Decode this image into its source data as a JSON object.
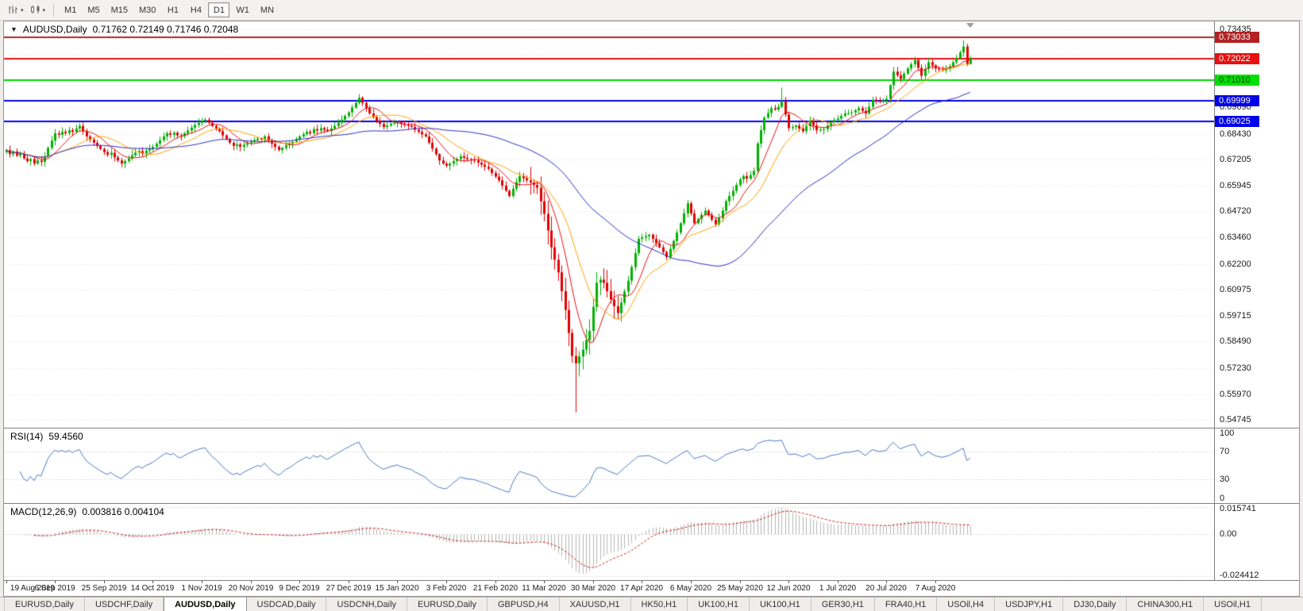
{
  "toolbar": {
    "timeframes": {
      "items": [
        "M1",
        "M5",
        "M15",
        "M30",
        "H1",
        "H4",
        "D1",
        "W1",
        "MN"
      ],
      "active": "D1"
    },
    "icons": [
      "bar-chart-icon",
      "candlestick-chart-icon"
    ]
  },
  "chart": {
    "title": "AUDUSD,Daily",
    "ohlc": "0.71762 0.72149 0.71746 0.72048"
  },
  "chart_data": {
    "type": "candlestick",
    "symbol": "AUDUSD",
    "timeframe": "Daily",
    "open": "0.71762",
    "high": "0.72149",
    "low": "0.71746",
    "close": "0.72048",
    "y_range": [
      0.5437,
      0.738
    ],
    "bars_total": 277,
    "colors": {
      "bull": "#00B000",
      "bear": "#E00000",
      "rsi_line": "#4878C8",
      "macd_hist": "#B4B4B4",
      "macd_signal": "#CC2222",
      "grid": "#E0E0E0"
    },
    "closes": [
      0.6765,
      0.6745,
      0.6758,
      0.6738,
      0.6748,
      0.6725,
      0.6712,
      0.6722,
      0.67,
      0.6715,
      0.6708,
      0.6735,
      0.6775,
      0.681,
      0.6845,
      0.6838,
      0.6852,
      0.6845,
      0.686,
      0.6852,
      0.6868,
      0.688,
      0.6855,
      0.683,
      0.6815,
      0.68,
      0.6785,
      0.677,
      0.6755,
      0.6742,
      0.6752,
      0.673,
      0.6715,
      0.67,
      0.6712,
      0.6725,
      0.674,
      0.6752,
      0.676,
      0.6748,
      0.6762,
      0.677,
      0.678,
      0.6795,
      0.6812,
      0.683,
      0.6845,
      0.6838,
      0.6848,
      0.6835,
      0.683,
      0.6845,
      0.6858,
      0.6872,
      0.6885,
      0.6895,
      0.6905,
      0.691,
      0.6895,
      0.688,
      0.6868,
      0.6855,
      0.6835,
      0.6818,
      0.68,
      0.6785,
      0.6792,
      0.678,
      0.679,
      0.6798,
      0.6805,
      0.6812,
      0.682,
      0.6815,
      0.683,
      0.6812,
      0.6795,
      0.678,
      0.6765,
      0.6775,
      0.6788,
      0.6795,
      0.6805,
      0.6818,
      0.683,
      0.684,
      0.6852,
      0.6845,
      0.6865,
      0.6858,
      0.687,
      0.6862,
      0.6855,
      0.6868,
      0.688,
      0.6895,
      0.691,
      0.6928,
      0.6945,
      0.6968,
      0.699,
      0.7015,
      0.699,
      0.6965,
      0.694,
      0.6922,
      0.6905,
      0.689,
      0.6875,
      0.6882,
      0.689,
      0.6895,
      0.69,
      0.6892,
      0.6885,
      0.688,
      0.6875,
      0.6862,
      0.6852,
      0.684,
      0.683,
      0.68,
      0.6772,
      0.6745,
      0.6715,
      0.67,
      0.669,
      0.67,
      0.6712,
      0.6722,
      0.6735,
      0.6728,
      0.6722,
      0.6718,
      0.6715,
      0.6705,
      0.6695,
      0.6685,
      0.6675,
      0.6655,
      0.6638,
      0.662,
      0.6595,
      0.657,
      0.6545,
      0.658,
      0.6612,
      0.664,
      0.663,
      0.662,
      0.661,
      0.6598,
      0.6585,
      0.652,
      0.646,
      0.638,
      0.63,
      0.624,
      0.618,
      0.609,
      0.6,
      0.589,
      0.578,
      0.5745,
      0.5778,
      0.581,
      0.5855,
      0.59,
      0.6015,
      0.613,
      0.6145,
      0.613,
      0.609,
      0.605,
      0.6018,
      0.5985,
      0.6035,
      0.6088,
      0.614,
      0.6205,
      0.6272,
      0.634,
      0.6347,
      0.6353,
      0.636,
      0.634,
      0.632,
      0.63,
      0.6277,
      0.6253,
      0.6292,
      0.633,
      0.637,
      0.6415,
      0.6462,
      0.651,
      0.6462,
      0.6415,
      0.6435,
      0.6455,
      0.6475,
      0.6453,
      0.6432,
      0.641,
      0.644,
      0.6475,
      0.652,
      0.6545,
      0.657,
      0.6598,
      0.6625,
      0.664,
      0.6628,
      0.6645,
      0.6665,
      0.6796,
      0.686,
      0.692,
      0.6942,
      0.6965,
      0.6958,
      0.6972,
      0.7,
      0.6935,
      0.687,
      0.6875,
      0.6882,
      0.6868,
      0.6855,
      0.688,
      0.6905,
      0.6882,
      0.686,
      0.6862,
      0.6865,
      0.6882,
      0.69,
      0.6908,
      0.6915,
      0.6928,
      0.694,
      0.6942,
      0.6945,
      0.6955,
      0.6965,
      0.6952,
      0.694,
      0.6972,
      0.7005,
      0.7,
      0.6995,
      0.7002,
      0.701,
      0.7075,
      0.714,
      0.7122,
      0.7105,
      0.713,
      0.7155,
      0.7175,
      0.7195,
      0.7158,
      0.712,
      0.7152,
      0.7185,
      0.717,
      0.7155,
      0.715,
      0.7145,
      0.7155,
      0.7165,
      0.7185,
      0.7205,
      0.7232,
      0.726,
      0.7176,
      0.72048
    ],
    "wick_overrides": {
      "101": {
        "high": 0.7032
      },
      "155": {
        "low": 0.6313
      },
      "163": {
        "low": 0.551
      },
      "222": {
        "high": 0.7064
      },
      "274": {
        "high": 0.729
      },
      "276": {
        "high": 0.72149,
        "low": 0.71746
      }
    },
    "ma": [
      {
        "period": 8,
        "color": "#E81010"
      },
      {
        "period": 16,
        "color": "#FFA200"
      },
      {
        "period": 50,
        "color": "#2A2AC8"
      }
    ],
    "price_lines": [
      {
        "price": 0.73033,
        "label": "0.73033",
        "color": "#A52A2A",
        "box": "#B22222",
        "text": "#FFFFFF"
      },
      {
        "price": 0.72022,
        "label": "0.72022",
        "color": "#EE1111",
        "box": "#E81111",
        "text": "#FFFFFF"
      },
      {
        "price": 0.7101,
        "label": "0.71010",
        "color": "#00D800",
        "box": "#00E000",
        "text": "#003300"
      },
      {
        "price": 0.69999,
        "label": "0.69999",
        "color": "#0000EE",
        "box": "#0000E8",
        "text": "#FFFFFF"
      },
      {
        "price": 0.69025,
        "label": "0.69025",
        "color": "#0000EE",
        "box": "#0000E8",
        "text": "#FFFFFF"
      }
    ],
    "y_axis_labels": [
      {
        "label": "0.73435",
        "value": 0.73435
      },
      {
        "label": "0.69690",
        "value": 0.6969
      },
      {
        "label": "0.68430",
        "value": 0.6843
      },
      {
        "label": "0.67205",
        "value": 0.67205
      },
      {
        "label": "0.65945",
        "value": 0.65945
      },
      {
        "label": "0.64720",
        "value": 0.6472
      },
      {
        "label": "0.63460",
        "value": 0.6346
      },
      {
        "label": "0.62200",
        "value": 0.622
      },
      {
        "label": "0.60975",
        "value": 0.60975
      },
      {
        "label": "0.59715",
        "value": 0.59715
      },
      {
        "label": "0.58490",
        "value": 0.5849
      },
      {
        "label": "0.57230",
        "value": 0.5723
      },
      {
        "label": "0.55970",
        "value": 0.5597
      },
      {
        "label": "0.54745",
        "value": 0.54745
      }
    ],
    "grid_prices": [
      0.73435,
      0.7221,
      0.7095,
      0.6969,
      0.6843,
      0.67205,
      0.65945,
      0.6472,
      0.6346,
      0.622,
      0.60975,
      0.59715,
      0.5849,
      0.5723,
      0.5597,
      0.54745
    ],
    "x_labels": [
      {
        "label": "19 Aug 2019",
        "bar": 0
      },
      {
        "label": "6 Sep 2019",
        "bar": 14
      },
      {
        "label": "25 Sep 2019",
        "bar": 28
      },
      {
        "label": "14 Oct 2019",
        "bar": 42
      },
      {
        "label": "1 Nov 2019",
        "bar": 56
      },
      {
        "label": "20 Nov 2019",
        "bar": 70
      },
      {
        "label": "9 Dec 2019",
        "bar": 84
      },
      {
        "label": "27 Dec 2019",
        "bar": 98
      },
      {
        "label": "15 Jan 2020",
        "bar": 112
      },
      {
        "label": "3 Feb 2020",
        "bar": 126
      },
      {
        "label": "21 Feb 2020",
        "bar": 140
      },
      {
        "label": "11 Mar 2020",
        "bar": 154
      },
      {
        "label": "30 Mar 2020",
        "bar": 168
      },
      {
        "label": "17 Apr 2020",
        "bar": 182
      },
      {
        "label": "6 May 2020",
        "bar": 196
      },
      {
        "label": "25 May 2020",
        "bar": 210
      },
      {
        "label": "12 Jun 2020",
        "bar": 224
      },
      {
        "label": "1 Jul 2020",
        "bar": 238
      },
      {
        "label": "20 Jul 2020",
        "bar": 252
      },
      {
        "label": "7 Aug 2020",
        "bar": 266
      }
    ],
    "indicators": {
      "rsi": {
        "name": "RSI(14)",
        "value": "59.4560",
        "period": 14,
        "levels": [
          {
            "label": "100",
            "value": 100
          },
          {
            "label": "70",
            "value": 70
          },
          {
            "label": "30",
            "value": 30
          },
          {
            "label": "0",
            "value": 0
          }
        ],
        "dashed_levels": [
          70,
          30
        ]
      },
      "macd": {
        "name": "MACD(12,26,9)",
        "values": "0.003816 0.004104",
        "axis": [
          {
            "label": "0.015741",
            "value": 0.015741
          },
          {
            "label": "0.00",
            "value": 0
          },
          {
            "label": "-0.024412",
            "value": -0.024412
          }
        ]
      }
    }
  },
  "tabs": {
    "active_index": 2,
    "items": [
      "EURUSD,Daily",
      "USDCHF,Daily",
      "AUDUSD,Daily",
      "USDCAD,Daily",
      "USDCNH,Daily",
      "EURUSD,Daily",
      "GBPUSD,H4",
      "XAUUSD,H1",
      "HK50,H1",
      "UK100,H1",
      "UK100,H1",
      "GER30,H1",
      "FRA40,H1",
      "USOil,H4",
      "USDJPY,H1",
      "DJ30,Daily",
      "CHINA300,H1",
      "USOil,H1"
    ]
  }
}
